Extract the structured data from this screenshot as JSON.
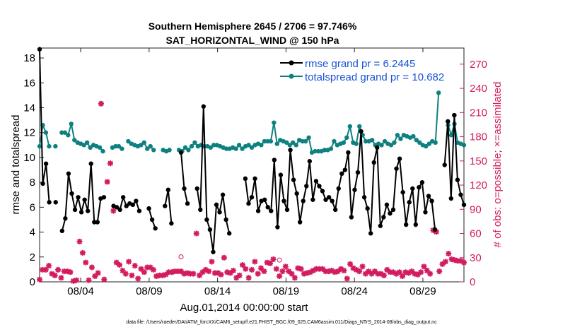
{
  "chart_data": {
    "type": "line",
    "title": "Southern Hemisphere 2645 / 2706 = 97.746%",
    "subtitle": "SAT_HORIZONTAL_WIND @ 150 hPa",
    "xlabel": "Aug.01,2014 00:00:00 start",
    "ylabel": "rmse and totalspread",
    "ylabel_right": "# of obs: o=possible; ×=assimilated",
    "footnote": "data file: /Users/raeder/DAI/ATM_forcXX/CAM6_setup/f.e21.FHIST_BGC.f09_025.CAM6assim.011/Diags_NTrS_2014-08/obs_diag_output.nc",
    "xlim": [
      1,
      32
    ],
    "ylim": [
      0,
      18.8
    ],
    "ylim_right": [
      0,
      290
    ],
    "xticks": [
      {
        "value": 4,
        "label": "08/04"
      },
      {
        "value": 9,
        "label": "08/09"
      },
      {
        "value": 14,
        "label": "08/14"
      },
      {
        "value": 19,
        "label": "08/19"
      },
      {
        "value": 24,
        "label": "08/24"
      },
      {
        "value": 29,
        "label": "08/29"
      }
    ],
    "yticks": [
      0,
      2,
      4,
      6,
      8,
      10,
      12,
      14,
      16,
      18
    ],
    "yticks_right": [
      0,
      30,
      60,
      90,
      120,
      150,
      180,
      210,
      240,
      270
    ],
    "colors": {
      "rmse": "#000000",
      "spread": "#0e8080",
      "obs": "#d31b5f",
      "legend_text": "#1a53d6"
    },
    "series": [
      {
        "name": "rmse grand pr = 6.2445",
        "color": "#000000",
        "values": [
          18.7,
          7.9,
          9.5,
          6.4,
          null,
          6.4,
          null,
          4.1,
          5.1,
          8.7,
          7.1,
          5.8,
          6.8,
          5.6,
          6.6,
          5.7,
          9.5,
          4.8,
          4.8,
          6.7,
          6.8,
          null,
          null,
          6.1,
          6.0,
          5.8,
          6.8,
          6.1,
          6.3,
          6.2,
          6.5,
          5.7,
          null,
          null,
          5.9,
          5.0,
          4.3,
          null,
          null,
          6.1,
          7.4,
          4.7,
          null,
          null,
          10.4,
          7.5,
          6.3,
          null,
          null,
          7.5,
          5.8,
          14.1,
          5.0,
          4.2,
          2.4,
          6.2,
          5.6,
          7.0,
          5.0,
          3.9,
          null,
          null,
          null,
          null,
          8.3,
          6.3,
          6.8,
          8.3,
          5.7,
          6.5,
          6.6,
          6.0,
          5.7,
          9.8,
          4.4,
          8.6,
          6.5,
          5.8,
          10.6,
          8.2,
          7.1,
          4.8,
          6.5,
          7.7,
          9.7,
          6.6,
          8.1,
          7.7,
          7.3,
          6.6,
          6.8,
          6.5,
          5.8,
          7.5,
          8.7,
          9.0,
          10.4,
          5.2,
          7.4,
          8.8,
          12.1,
          6.8,
          5.9,
          3.9,
          9.6,
          10.8,
          4.5,
          5.2,
          6.2,
          5.5,
          5.8,
          9.1,
          9.9,
          7.2,
          4.6,
          6.4,
          7.5,
          4.6,
          7.6,
          8.0,
          5.6,
          6.9,
          6.5,
          4.2,
          null,
          null,
          9.4,
          12.9,
          6.7,
          13.4,
          8.2,
          7.0,
          6.2
        ]
      },
      {
        "name": "totalspread grand pr = 10.682",
        "color": "#0e8080",
        "values": [
          10.9,
          12.6,
          12.0,
          10.9,
          null,
          10.9,
          null,
          12.0,
          12.0,
          11.8,
          12.7,
          11.4,
          11.2,
          11.1,
          11.0,
          11.2,
          10.8,
          11.0,
          10.9,
          10.8,
          10.5,
          null,
          null,
          10.8,
          10.9,
          10.9,
          10.7,
          null,
          11.3,
          11.1,
          11.0,
          10.9,
          11.0,
          11.2,
          10.7,
          10.9,
          10.6,
          null,
          null,
          10.6,
          10.5,
          10.6,
          null,
          null,
          10.6,
          10.5,
          10.8,
          10.6,
          10.9,
          11.2,
          10.9,
          11.0,
          10.9,
          10.9,
          10.8,
          11.0,
          11.0,
          10.9,
          10.8,
          10.7,
          10.7,
          10.8,
          10.7,
          11.0,
          10.7,
          10.9,
          11.0,
          10.8,
          11.0,
          11.1,
          11.0,
          11.3,
          11.3,
          11.3,
          12.8,
          11.1,
          11.4,
          11.3,
          11.2,
          11.0,
          11.2,
          11.0,
          11.4,
          11.3,
          11.3,
          11.6,
          10.4,
          10.5,
          10.5,
          10.5,
          10.6,
          10.6,
          10.7,
          11.3,
          11.0,
          11.1,
          11.2,
          11.6,
          12.5,
          11.2,
          11.1,
          12.5,
          11.8,
          11.3,
          11.3,
          11.4,
          11.0,
          11.1,
          11.0,
          11.3,
          11.1,
          11.0,
          11.2,
          11.8,
          11.5,
          11.8,
          11.7,
          11.6,
          11.7,
          11.4,
          11.2,
          11.0,
          10.9,
          11.1,
          11.3,
          11.2,
          15.2,
          null,
          null,
          12.6,
          11.8,
          12.7,
          11.2,
          11.1,
          11.0
        ]
      },
      {
        "name": "obs assimilated",
        "color": "#d31b5f",
        "values": [
          3,
          15,
          15,
          20,
          10,
          8,
          15,
          5,
          13,
          13,
          12,
          1,
          2,
          50,
          36,
          24,
          2,
          18,
          7,
          11,
          221,
          3,
          124,
          147,
          88,
          24,
          21,
          14,
          10,
          25,
          8,
          20,
          4,
          16,
          12,
          18,
          18,
          15,
          7,
          8,
          8,
          9,
          12,
          12,
          13,
          13,
          13,
          10,
          11,
          10,
          10,
          60,
          8,
          12,
          15,
          13,
          25,
          11,
          11,
          9,
          30,
          12,
          11,
          14,
          5,
          8,
          21,
          16,
          5,
          15,
          25,
          10,
          17,
          13,
          24,
          23,
          28,
          16,
          7,
          13,
          19,
          13,
          10,
          5,
          17,
          16,
          10,
          11,
          12,
          14,
          16,
          16,
          16,
          13,
          13,
          14,
          12,
          13,
          16,
          14,
          4,
          22,
          17,
          15,
          13,
          19,
          10,
          13,
          10,
          13,
          10,
          10,
          8,
          15,
          12,
          12,
          10,
          12,
          7,
          12,
          11,
          13,
          10,
          9,
          12,
          19,
          14,
          10,
          64,
          62,
          13,
          22,
          25,
          35,
          28,
          27,
          26,
          26,
          24
        ]
      },
      {
        "name": "obs possible",
        "color": "#d31b5f",
        "values": [
          31,
          27
        ]
      }
    ]
  }
}
